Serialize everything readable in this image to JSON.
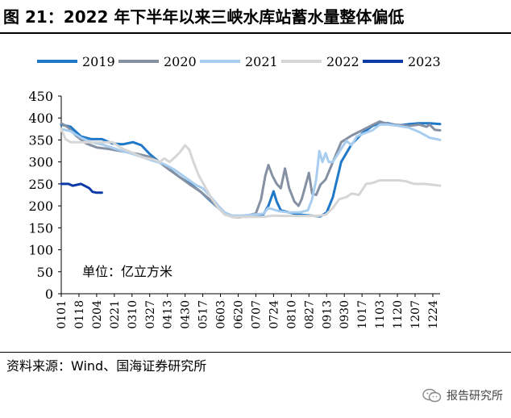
{
  "header": {
    "title": "图 21：2022 年下半年以来三峡水库站蓄水量整体偏低"
  },
  "footer": {
    "source": "资料来源：Wind、国海证券研究所",
    "watermark": "报告研究所"
  },
  "chart_data": {
    "type": "line",
    "title": "图 21：2022 年下半年以来三峡水库站蓄水量整体偏低",
    "annotation": "单位：亿立方米",
    "ylim": [
      0,
      450
    ],
    "yticks": [
      0,
      50,
      100,
      150,
      200,
      250,
      300,
      350,
      400,
      450
    ],
    "xlim": [
      1,
      365
    ],
    "xticks": [
      {
        "label": "0101",
        "day": 1
      },
      {
        "label": "0118",
        "day": 18
      },
      {
        "label": "0204",
        "day": 35
      },
      {
        "label": "0221",
        "day": 52
      },
      {
        "label": "0310",
        "day": 69
      },
      {
        "label": "0327",
        "day": 86
      },
      {
        "label": "0413",
        "day": 103
      },
      {
        "label": "0430",
        "day": 120
      },
      {
        "label": "0517",
        "day": 137
      },
      {
        "label": "0603",
        "day": 154
      },
      {
        "label": "0620",
        "day": 171
      },
      {
        "label": "0707",
        "day": 188
      },
      {
        "label": "0724",
        "day": 205
      },
      {
        "label": "0810",
        "day": 222
      },
      {
        "label": "0827",
        "day": 239
      },
      {
        "label": "0913",
        "day": 256
      },
      {
        "label": "0930",
        "day": 273
      },
      {
        "label": "1017",
        "day": 290
      },
      {
        "label": "1103",
        "day": 307
      },
      {
        "label": "1120",
        "day": 324
      },
      {
        "label": "1207",
        "day": 341
      },
      {
        "label": "1224",
        "day": 358
      }
    ],
    "legend_position": "top",
    "series": [
      {
        "name": "2019",
        "color": "#1f78c8",
        "width": 3,
        "points": [
          [
            1,
            385
          ],
          [
            10,
            380
          ],
          [
            20,
            358
          ],
          [
            30,
            352
          ],
          [
            40,
            352
          ],
          [
            50,
            342
          ],
          [
            60,
            340
          ],
          [
            70,
            345
          ],
          [
            78,
            338
          ],
          [
            86,
            318
          ],
          [
            95,
            300
          ],
          [
            105,
            283
          ],
          [
            115,
            265
          ],
          [
            125,
            250
          ],
          [
            135,
            232
          ],
          [
            145,
            210
          ],
          [
            152,
            195
          ],
          [
            158,
            182
          ],
          [
            165,
            176
          ],
          [
            175,
            176
          ],
          [
            185,
            178
          ],
          [
            195,
            180
          ],
          [
            200,
            200
          ],
          [
            205,
            233
          ],
          [
            208,
            210
          ],
          [
            212,
            190
          ],
          [
            220,
            185
          ],
          [
            230,
            180
          ],
          [
            240,
            178
          ],
          [
            250,
            176
          ],
          [
            256,
            185
          ],
          [
            262,
            220
          ],
          [
            270,
            300
          ],
          [
            280,
            340
          ],
          [
            290,
            365
          ],
          [
            300,
            382
          ],
          [
            307,
            388
          ],
          [
            315,
            388
          ],
          [
            325,
            383
          ],
          [
            335,
            386
          ],
          [
            345,
            388
          ],
          [
            355,
            388
          ],
          [
            365,
            386
          ]
        ]
      },
      {
        "name": "2020",
        "color": "#8591a3",
        "width": 3,
        "points": [
          [
            1,
            388
          ],
          [
            8,
            378
          ],
          [
            15,
            360
          ],
          [
            25,
            342
          ],
          [
            35,
            333
          ],
          [
            45,
            330
          ],
          [
            55,
            326
          ],
          [
            65,
            322
          ],
          [
            75,
            318
          ],
          [
            85,
            312
          ],
          [
            95,
            300
          ],
          [
            105,
            282
          ],
          [
            115,
            265
          ],
          [
            125,
            248
          ],
          [
            135,
            232
          ],
          [
            145,
            212
          ],
          [
            152,
            195
          ],
          [
            158,
            182
          ],
          [
            165,
            175
          ],
          [
            172,
            174
          ],
          [
            180,
            178
          ],
          [
            188,
            183
          ],
          [
            193,
            215
          ],
          [
            197,
            268
          ],
          [
            200,
            293
          ],
          [
            204,
            268
          ],
          [
            208,
            250
          ],
          [
            212,
            240
          ],
          [
            216,
            285
          ],
          [
            220,
            240
          ],
          [
            225,
            210
          ],
          [
            229,
            200
          ],
          [
            232,
            215
          ],
          [
            235,
            240
          ],
          [
            239,
            275
          ],
          [
            242,
            228
          ],
          [
            246,
            225
          ],
          [
            250,
            248
          ],
          [
            255,
            260
          ],
          [
            262,
            300
          ],
          [
            270,
            345
          ],
          [
            280,
            360
          ],
          [
            290,
            372
          ],
          [
            300,
            384
          ],
          [
            307,
            392
          ],
          [
            315,
            386
          ],
          [
            325,
            384
          ],
          [
            335,
            382
          ],
          [
            345,
            385
          ],
          [
            352,
            380
          ],
          [
            355,
            385
          ],
          [
            360,
            373
          ],
          [
            365,
            372
          ]
        ]
      },
      {
        "name": "2021",
        "color": "#a8cdef",
        "width": 3,
        "points": [
          [
            1,
            375
          ],
          [
            10,
            370
          ],
          [
            20,
            355
          ],
          [
            30,
            345
          ],
          [
            40,
            340
          ],
          [
            50,
            332
          ],
          [
            60,
            325
          ],
          [
            70,
            318
          ],
          [
            80,
            310
          ],
          [
            90,
            302
          ],
          [
            100,
            295
          ],
          [
            110,
            282
          ],
          [
            120,
            265
          ],
          [
            130,
            248
          ],
          [
            137,
            240
          ],
          [
            145,
            220
          ],
          [
            152,
            200
          ],
          [
            158,
            185
          ],
          [
            165,
            178
          ],
          [
            175,
            178
          ],
          [
            185,
            180
          ],
          [
            195,
            182
          ],
          [
            200,
            195
          ],
          [
            210,
            188
          ],
          [
            220,
            185
          ],
          [
            230,
            185
          ],
          [
            238,
            190
          ],
          [
            242,
            215
          ],
          [
            246,
            260
          ],
          [
            249,
            325
          ],
          [
            252,
            300
          ],
          [
            255,
            320
          ],
          [
            258,
            300
          ],
          [
            262,
            300
          ],
          [
            266,
            315
          ],
          [
            270,
            330
          ],
          [
            275,
            348
          ],
          [
            280,
            338
          ],
          [
            285,
            358
          ],
          [
            292,
            365
          ],
          [
            300,
            372
          ],
          [
            307,
            385
          ],
          [
            315,
            385
          ],
          [
            325,
            382
          ],
          [
            335,
            378
          ],
          [
            345,
            368
          ],
          [
            355,
            355
          ],
          [
            365,
            350
          ]
        ]
      },
      {
        "name": "2022",
        "color": "#d6d6d6",
        "width": 3,
        "points": [
          [
            1,
            375
          ],
          [
            5,
            352
          ],
          [
            10,
            345
          ],
          [
            20,
            345
          ],
          [
            30,
            345
          ],
          [
            40,
            345
          ],
          [
            50,
            345
          ],
          [
            60,
            330
          ],
          [
            70,
            320
          ],
          [
            80,
            310
          ],
          [
            90,
            305
          ],
          [
            96,
            300
          ],
          [
            100,
            308
          ],
          [
            105,
            300
          ],
          [
            110,
            310
          ],
          [
            115,
            322
          ],
          [
            120,
            338
          ],
          [
            124,
            328
          ],
          [
            128,
            300
          ],
          [
            133,
            270
          ],
          [
            140,
            240
          ],
          [
            146,
            215
          ],
          [
            152,
            195
          ],
          [
            158,
            180
          ],
          [
            165,
            175
          ],
          [
            175,
            175
          ],
          [
            185,
            175
          ],
          [
            195,
            175
          ],
          [
            205,
            178
          ],
          [
            215,
            177
          ],
          [
            225,
            177
          ],
          [
            235,
            177
          ],
          [
            245,
            177
          ],
          [
            250,
            178
          ],
          [
            255,
            180
          ],
          [
            262,
            195
          ],
          [
            268,
            215
          ],
          [
            275,
            220
          ],
          [
            280,
            228
          ],
          [
            287,
            225
          ],
          [
            294,
            250
          ],
          [
            300,
            252
          ],
          [
            307,
            258
          ],
          [
            315,
            258
          ],
          [
            325,
            258
          ],
          [
            332,
            256
          ],
          [
            340,
            250
          ],
          [
            350,
            250
          ],
          [
            358,
            248
          ],
          [
            365,
            246
          ]
        ]
      },
      {
        "name": "2023",
        "color": "#0c3aa6",
        "width": 3,
        "points": [
          [
            1,
            250
          ],
          [
            8,
            250
          ],
          [
            12,
            246
          ],
          [
            16,
            248
          ],
          [
            20,
            250
          ],
          [
            24,
            245
          ],
          [
            28,
            240
          ],
          [
            31,
            232
          ],
          [
            35,
            230
          ],
          [
            40,
            230
          ]
        ]
      }
    ]
  }
}
